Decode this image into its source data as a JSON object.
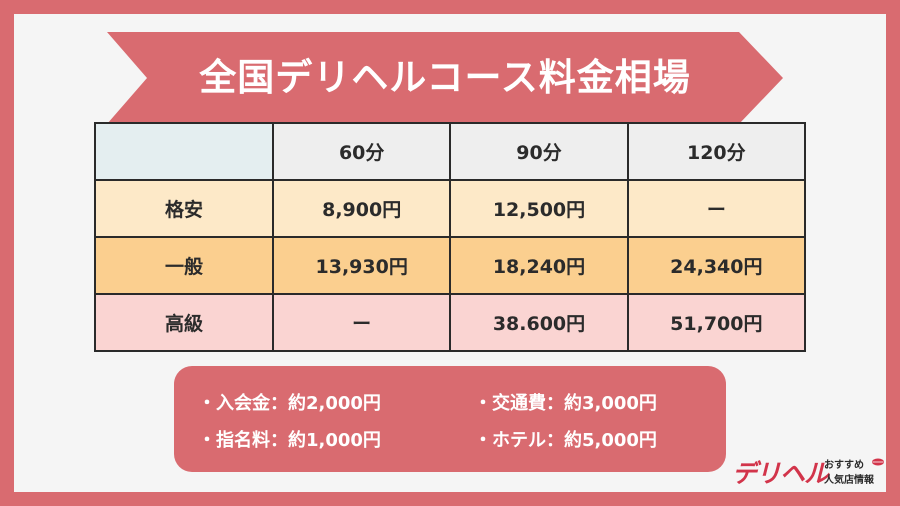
{
  "title": "全国デリヘルコース料金相場",
  "table": {
    "headers": [
      "",
      "60分",
      "90分",
      "120分"
    ],
    "rows": [
      {
        "label": "格安",
        "values": [
          "8,900円",
          "12,500円",
          "ー"
        ]
      },
      {
        "label": "一般",
        "values": [
          "13,930円",
          "18,240円",
          "24,340円"
        ]
      },
      {
        "label": "高級",
        "values": [
          "ー",
          "38.600円",
          "51,700円"
        ]
      }
    ]
  },
  "fees": [
    "・入会金：約2,000円",
    "・交通費：約3,000円",
    "・指名料：約1,000円",
    "・ホテル：約5,000円"
  ],
  "logo": {
    "main": "デリヘル",
    "line1": "おすすめ",
    "line2": "人気店情報"
  },
  "colors": {
    "frame": "#d96b70",
    "cheap_row": "#fde9c8",
    "normal_row": "#fbcf8f",
    "high_row": "#fad4d2"
  }
}
